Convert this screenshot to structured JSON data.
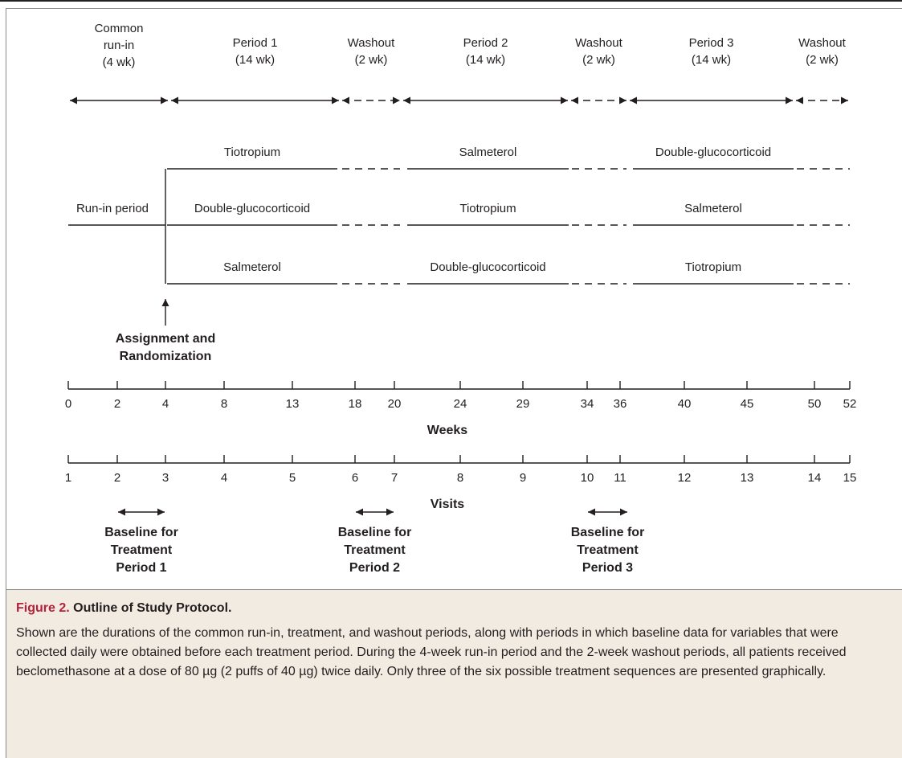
{
  "periods": [
    {
      "lines": [
        "Common",
        "run-in",
        "(4 wk)"
      ],
      "arrow": "solid"
    },
    {
      "lines": [
        "Period 1",
        "(14 wk)"
      ],
      "arrow": "solid"
    },
    {
      "lines": [
        "Washout",
        "(2 wk)"
      ],
      "arrow": "dashed"
    },
    {
      "lines": [
        "Period 2",
        "(14 wk)"
      ],
      "arrow": "solid"
    },
    {
      "lines": [
        "Washout",
        "(2 wk)"
      ],
      "arrow": "dashed"
    },
    {
      "lines": [
        "Period 3",
        "(14 wk)"
      ],
      "arrow": "solid"
    },
    {
      "lines": [
        "Washout",
        "(2 wk)"
      ],
      "arrow": "dashed"
    }
  ],
  "run_in_label": "Run-in period",
  "sequences": [
    [
      "Tiotropium",
      "Salmeterol",
      "Double-glucocorticoid"
    ],
    [
      "Double-glucocorticoid",
      "Tiotropium",
      "Salmeterol"
    ],
    [
      "Salmeterol",
      "Double-glucocorticoid",
      "Tiotropium"
    ]
  ],
  "assignment_label": [
    "Assignment and",
    "Randomization"
  ],
  "weeks_axis": {
    "label": "Weeks",
    "ticks": [
      "0",
      "2",
      "4",
      "8",
      "13",
      "18",
      "20",
      "24",
      "29",
      "34",
      "36",
      "40",
      "45",
      "50",
      "52"
    ]
  },
  "visits_axis": {
    "label": "Visits",
    "ticks": [
      "1",
      "2",
      "3",
      "4",
      "5",
      "6",
      "7",
      "8",
      "9",
      "10",
      "11",
      "12",
      "13",
      "14",
      "15"
    ]
  },
  "baselines": [
    [
      "Baseline for",
      "Treatment",
      "Period 1"
    ],
    [
      "Baseline for",
      "Treatment",
      "Period 2"
    ],
    [
      "Baseline for",
      "Treatment",
      "Period 3"
    ]
  ],
  "caption": {
    "label": "Figure 2.",
    "title": "Outline of Study Protocol.",
    "text": "Shown are the durations of the common run-in, treatment, and washout periods, along with periods in which baseline data for variables that were collected daily were obtained before each treatment period. During the 4-week run-in period and the 2-week washout periods, all patients received beclomethasone at a dose of 80 µg (2 puffs of 40 µg) twice daily. Only three of the six possible treatment sequences are presented graphically."
  },
  "colors": {
    "ink": "#231f20",
    "caption_background": "#f2ebe2",
    "caption_label": "#b5213a",
    "frame": "#8a8a8a"
  }
}
